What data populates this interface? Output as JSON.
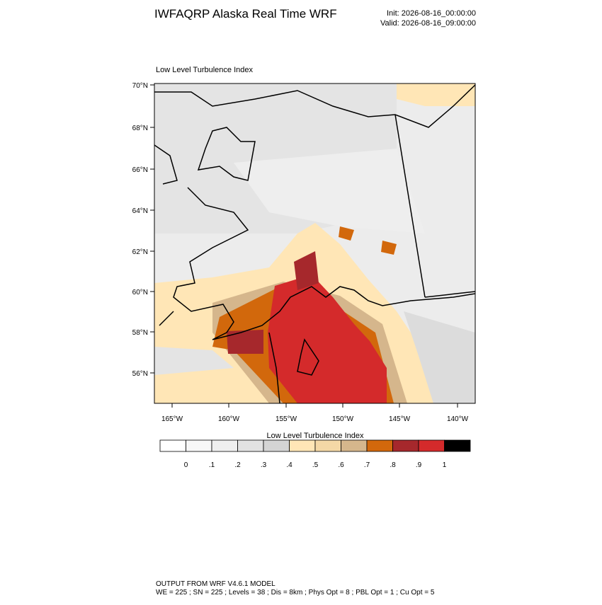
{
  "header": {
    "title": "IWFAQRP Alaska Real Time WRF",
    "init": "Init: 2026-08-16_00:00:00",
    "valid": "Valid: 2026-08-16_09:00:00"
  },
  "map": {
    "title": "Low Level Turbulence Index",
    "lat_labels": [
      "70°N",
      "68°N",
      "66°N",
      "64°N",
      "62°N",
      "60°N",
      "58°N",
      "56°N"
    ],
    "lon_labels": [
      "165°W",
      "160°W",
      "155°W",
      "150°W",
      "145°W",
      "140°W"
    ]
  },
  "colorbar": {
    "title": "Low Level Turbulence Index",
    "labels": [
      "0",
      ".1",
      ".2",
      ".3",
      ".4",
      ".5",
      ".6",
      ".7",
      ".8",
      ".9",
      "1"
    ],
    "colors": [
      "#ffffff",
      "#f7f7f7",
      "#efefef",
      "#e2e2e2",
      "#d4d4d4",
      "#ffe6b6",
      "#f4d8a6",
      "#d5b68c",
      "#d2680c",
      "#a6282c",
      "#d42a2b",
      "#000000"
    ]
  },
  "footer": {
    "line1": "OUTPUT FROM WRF V4.6.1 MODEL",
    "line2": "WE = 225 ; SN = 225 ; Levels = 38 ; Dis = 8km ; Phys Opt = 8 ; PBL Opt = 1 ; Cu Opt = 5"
  }
}
